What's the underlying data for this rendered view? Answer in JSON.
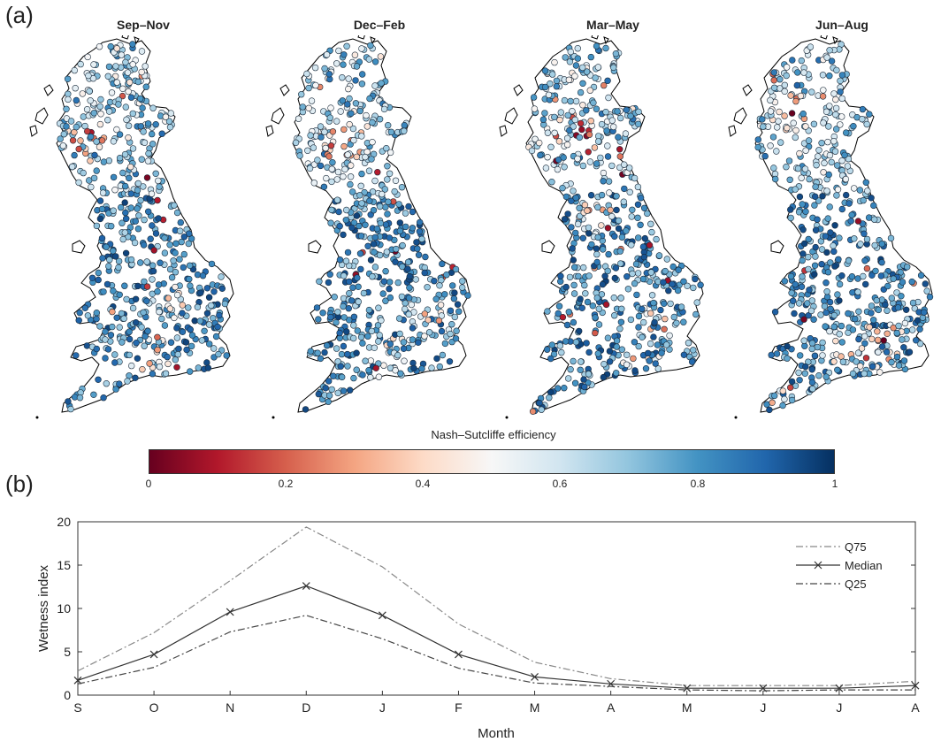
{
  "panel_labels": {
    "a": "(a)",
    "b": "(b)"
  },
  "colors": {
    "low": "#67001f",
    "mid": "#f7f7f7",
    "high": "#053061",
    "map_fill": "#ffffff",
    "coast": "#000000"
  },
  "chart_data": [
    {
      "type": "heatmap",
      "description_kind": "point map",
      "titles": [
        "Sep–Nov",
        "Dec–Feb",
        "Mar–May",
        "Jun–Aug"
      ],
      "colorbar": {
        "label": "Nash–Sutcliffe efficiency",
        "range": [
          0,
          1
        ],
        "ticks": [
          "0",
          "0.2",
          "0.4",
          "0.6",
          "0.8",
          "1"
        ],
        "colormap": "red-white-blue diverging"
      }
    },
    {
      "type": "line",
      "xlabel": "Month",
      "ylabel": "Wetness index",
      "categories": [
        "S",
        "O",
        "N",
        "D",
        "J",
        "F",
        "M",
        "A",
        "M",
        "J",
        "J",
        "A"
      ],
      "ylim": [
        0,
        20
      ],
      "yticks": [
        "0",
        "5",
        "10",
        "15",
        "20"
      ],
      "legend_position": "top-right",
      "series": [
        {
          "name": "Q75",
          "style": "dash-dot",
          "color": "#888888",
          "values": [
            2.8,
            7.2,
            13.2,
            19.4,
            14.8,
            8.2,
            3.8,
            1.9,
            1.1,
            1.1,
            1.1,
            1.6
          ]
        },
        {
          "name": "Median",
          "style": "solid-x",
          "color": "#333333",
          "values": [
            1.7,
            4.7,
            9.6,
            12.6,
            9.2,
            4.7,
            2.1,
            1.3,
            0.8,
            0.8,
            0.8,
            1.1
          ]
        },
        {
          "name": "Q25",
          "style": "dash-dot",
          "color": "#444444",
          "values": [
            1.3,
            3.2,
            7.3,
            9.2,
            6.5,
            3.1,
            1.4,
            1.0,
            0.6,
            0.5,
            0.6,
            0.6
          ]
        }
      ]
    }
  ]
}
